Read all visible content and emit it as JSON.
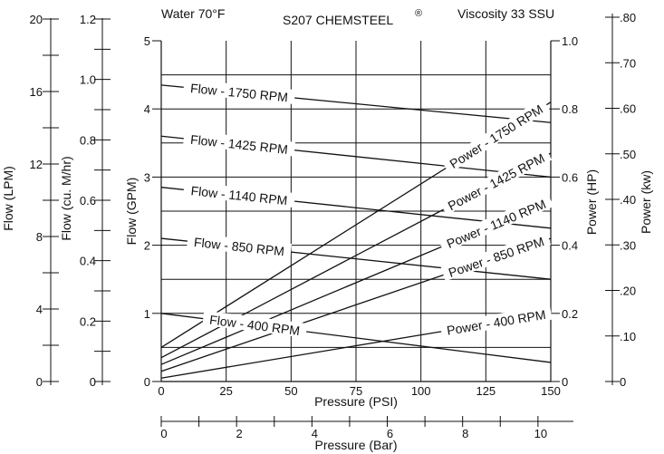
{
  "header": {
    "water": "Water 70°F",
    "model": "S207 CHEMSTEEL",
    "registered": "®",
    "viscosity": "Viscosity 33 SSU"
  },
  "chart_data": {
    "type": "line",
    "x": {
      "label": "Pressure (PSI)",
      "range": [
        0,
        150
      ],
      "ticks": [
        0,
        25,
        50,
        75,
        100,
        125,
        150
      ]
    },
    "x2": {
      "label": "Pressure (Bar)",
      "range": [
        0,
        10.34
      ],
      "ticks": [
        0,
        2,
        4,
        6,
        8,
        10
      ]
    },
    "y_left": [
      {
        "label": "Flow (LPM)",
        "range": [
          0,
          20
        ],
        "ticks": [
          0,
          4,
          8,
          12,
          16,
          20
        ],
        "minor_step": 2
      },
      {
        "label": "Flow (cu. M/hr)",
        "range": [
          0,
          1.2
        ],
        "ticks": [
          0,
          0.2,
          0.4,
          0.6,
          0.8,
          1.0,
          1.2
        ],
        "tick_labels": [
          "0",
          "0.2",
          "0.4",
          "0.6",
          "0.8",
          "1.0",
          "1.2"
        ],
        "minor_step": 0.1
      },
      {
        "label": "Flow (GPM)",
        "range": [
          0,
          5
        ],
        "ticks": [
          0,
          1,
          2,
          3,
          4,
          5
        ]
      }
    ],
    "y_right": [
      {
        "label": "Power (HP)",
        "range": [
          0,
          1.0
        ],
        "ticks": [
          0,
          0.2,
          0.4,
          0.6,
          0.8,
          1.0
        ],
        "tick_labels": [
          "0",
          "0.2",
          "0.4",
          "0.6",
          "0.8",
          "1.0"
        ]
      },
      {
        "label": "Power (kw)",
        "range": [
          0,
          0.8
        ],
        "ticks": [
          0,
          0.1,
          0.2,
          0.3,
          0.4,
          0.5,
          0.6,
          0.7,
          0.8
        ],
        "tick_labels": [
          "0",
          ".10",
          ".20",
          ".30",
          ".40",
          ".50",
          ".60",
          ".70",
          ".80"
        ]
      }
    ],
    "grid_gpm_lines": [
      0.5,
      1.0,
      1.5,
      2.0,
      2.5,
      3.0,
      3.5,
      4.0,
      4.5
    ],
    "flow_series": [
      {
        "name": "Flow - 1750 RPM",
        "x": [
          0,
          150
        ],
        "y": [
          4.35,
          3.8
        ]
      },
      {
        "name": "Flow - 1425 RPM",
        "x": [
          0,
          150
        ],
        "y": [
          3.6,
          3.0
        ]
      },
      {
        "name": "Flow - 1140 RPM",
        "x": [
          0,
          150
        ],
        "y": [
          2.85,
          2.25
        ]
      },
      {
        "name": "Flow - 850 RPM",
        "x": [
          0,
          150
        ],
        "y": [
          2.1,
          1.5
        ]
      },
      {
        "name": "Flow - 400 RPM",
        "x": [
          0,
          150
        ],
        "y": [
          1.0,
          0.28
        ]
      }
    ],
    "power_series": [
      {
        "name": "Power - 1750 RPM",
        "x": [
          0,
          150
        ],
        "y": [
          0.1,
          0.82
        ]
      },
      {
        "name": "Power - 1425 RPM",
        "x": [
          0,
          150
        ],
        "y": [
          0.07,
          0.67
        ]
      },
      {
        "name": "Power - 1140 RPM",
        "x": [
          0,
          150
        ],
        "y": [
          0.05,
          0.53
        ]
      },
      {
        "name": "Power - 850 RPM",
        "x": [
          0,
          150
        ],
        "y": [
          0.03,
          0.42
        ]
      },
      {
        "name": "Power - 400 RPM",
        "x": [
          0,
          150
        ],
        "y": [
          0.01,
          0.2
        ]
      }
    ]
  }
}
